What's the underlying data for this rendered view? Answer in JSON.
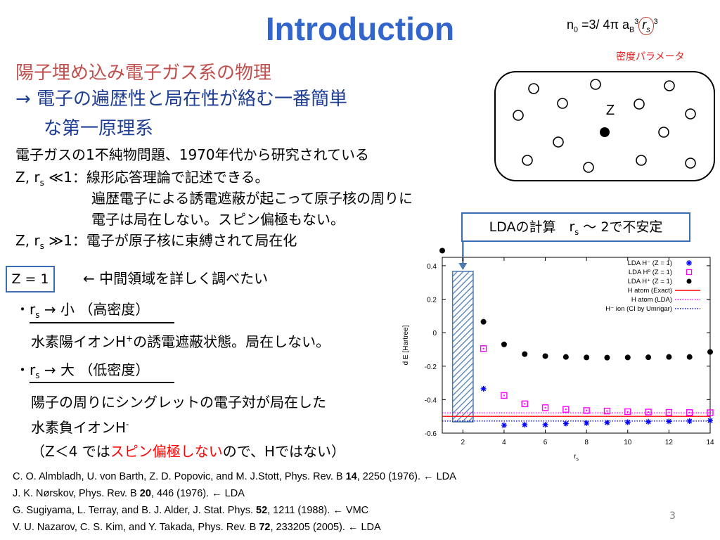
{
  "title": "Introduction",
  "formula": {
    "pre": "n",
    "sub0": "0",
    "eq": " =3/ 4π a",
    "subB": "B",
    "sup3a": "3",
    "rs": "r",
    "rs_sub": "s",
    "sup3b": "3"
  },
  "density_param": "密度パラメータ",
  "heading1": "陽子埋め込み電子ガス系の物理",
  "heading2": "→ 電子の遍歴性と局在性が絡む一番簡単",
  "heading3": "な第一原理系",
  "line1": "電子ガスの1不純物問題、1970年代から研究されている",
  "line2_pre": "Z, r",
  "line2_sub": "s",
  "line2_post": " ≪1：線形応答理論で記述できる。",
  "line3": "遍歴電子による誘電遮蔽が起こって原子核の周りに",
  "line4": "電子は局在しない。スピン偏極もない。",
  "line5_pre": "Z, r",
  "line5_sub": "s",
  "line5_post": " ≫1：電子が原子核に束縛されて局在化",
  "z_box": "Z = 1",
  "z_note": "← 中間領域を詳しく調べたい",
  "bullet1_pre": "・r",
  "bullet1_sub": "s",
  "bullet1_post": " → 小 （高密度）",
  "bullet1_text_pre": "水素陽イオンH",
  "bullet1_sup": "+",
  "bullet1_text_post": "の誘電遮蔽状態。局在しない。",
  "bullet2_pre": "・r",
  "bullet2_sub": "s",
  "bullet2_post": " → 大 （低密度）",
  "bullet2_text1": "陽子の周りにシングレットの電子対が局在した",
  "bullet2_text2_pre": "水素負イオンH",
  "bullet2_sup": "-",
  "bullet2_text3_pre": "（Z＜4 では",
  "bullet2_text3_red": "スピン偏極しない",
  "bullet2_text3_post": "ので、Hではない）",
  "lda_box_pre": "LDAの計算　r",
  "lda_box_sub": "s",
  "lda_box_post": " 〜 2で不安定",
  "diagram_label": "Z",
  "references": [
    {
      "pre": "C. O. Almbladh, U. von Barth, Z. D. Popovic, and M. J.Stott, Phys. Rev. B ",
      "vol": "14",
      "post": ", 2250 (1976).   ← LDA"
    },
    {
      "pre": "J. K. Nørskov, Phys. Rev. B ",
      "vol": "20",
      "post": ", 446 (1976).   ← LDA"
    },
    {
      "pre": "G. Sugiyama, L. Terray, and B. J. Alder, J. Stat. Phys. ",
      "vol": "52",
      "post": ", 1211 (1988).   ← VMC"
    },
    {
      "pre": "V. U. Nazarov, C. S. Kim, and Y. Takada, Phys. Rev. B ",
      "vol": "72",
      "post": ", 233205 (2005).   ← LDA"
    }
  ],
  "page_number": "3",
  "chart_data": {
    "type": "scatter",
    "xlabel": "rs",
    "ylabel": "d E  [Hartree]",
    "xlim": [
      1,
      14
    ],
    "ylim": [
      -0.6,
      0.45
    ],
    "xticks": [
      "2",
      "4",
      "6",
      "8",
      "10",
      "12",
      "14"
    ],
    "yticks": [
      "0.4",
      "0.2",
      "0",
      "-0.2",
      "-0.4",
      "-0.6"
    ],
    "legend_position": "top-right",
    "series": [
      {
        "name": "LDA  H⁻   (Z = 1)",
        "marker": "star",
        "color": "#0000ff",
        "x": [
          3,
          4,
          5,
          6,
          7,
          8,
          9,
          10,
          11,
          12,
          13,
          14
        ],
        "y": [
          -0.335,
          -0.553,
          -0.55,
          -0.55,
          -0.543,
          -0.54,
          -0.537,
          -0.535,
          -0.532,
          -0.53,
          -0.528,
          -0.525
        ]
      },
      {
        "name": "LDA  H⁰   (Z = 1)",
        "marker": "square",
        "color": "#ff00ff",
        "x": [
          3,
          4,
          5,
          6,
          7,
          8,
          9,
          10,
          11,
          12,
          13,
          14
        ],
        "y": [
          -0.095,
          -0.375,
          -0.425,
          -0.448,
          -0.458,
          -0.465,
          -0.468,
          -0.472,
          -0.474,
          -0.476,
          -0.477,
          -0.478
        ]
      },
      {
        "name": "LDA  H⁺   (Z = 1)",
        "marker": "circle",
        "color": "#000000",
        "x": [
          1,
          3,
          4,
          5,
          6,
          7,
          8,
          9,
          10,
          11,
          12,
          13,
          14
        ],
        "y": [
          0.49,
          0.065,
          -0.07,
          -0.128,
          -0.14,
          -0.145,
          -0.148,
          -0.149,
          -0.148,
          -0.147,
          -0.145,
          -0.145,
          -0.115
        ]
      }
    ],
    "lines": [
      {
        "name": "H atom (Exact)",
        "y": -0.5,
        "color": "#ff0000",
        "style": "solid"
      },
      {
        "name": "H atom (LDA)",
        "y": -0.479,
        "color": "#ff00ff",
        "style": "dotted"
      },
      {
        "name": "H⁻ ion (CI by Umrigar)",
        "y": -0.528,
        "color": "#0000cc",
        "style": "dotted"
      }
    ],
    "unstable_band": [
      1.5,
      2.5
    ]
  }
}
